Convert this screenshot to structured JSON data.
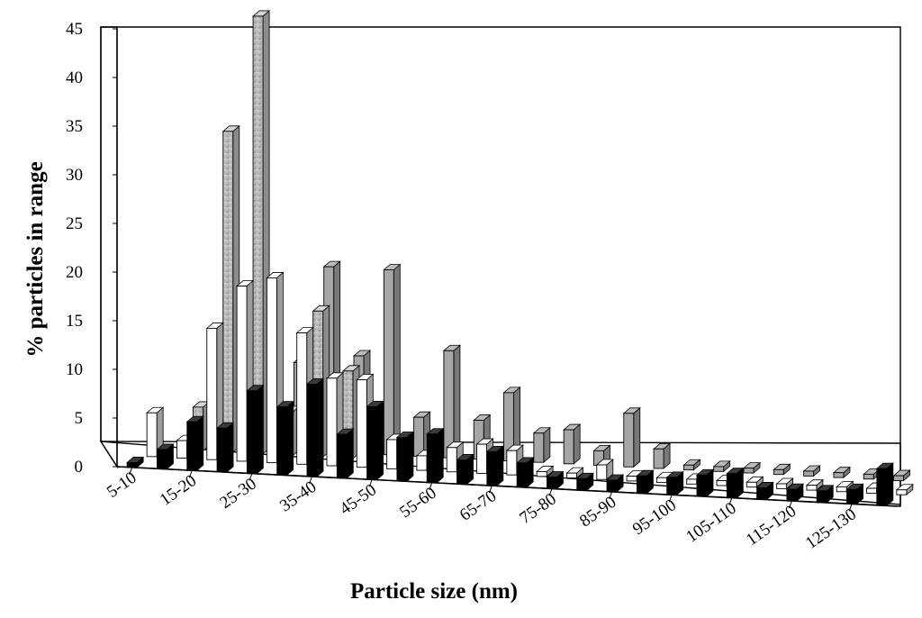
{
  "chart_data": {
    "type": "bar",
    "subtype": "3d-grouped-depth",
    "title": "",
    "xlabel": "Particle size (nm)",
    "ylabel": "% particles in range",
    "ylim": [
      0,
      45
    ],
    "yticks": [
      "0",
      "5",
      "10",
      "15",
      "20",
      "25",
      "30",
      "35",
      "40",
      "45"
    ],
    "categories": [
      "5-10",
      "10-15",
      "15-20",
      "20-25",
      "25-30",
      "30-35",
      "35-40",
      "40-45",
      "45-50",
      "50-55",
      "55-60",
      "60-65",
      "65-70",
      "70-75",
      "75-80",
      "80-85",
      "85-90",
      "90-95",
      "95-100",
      "100-105",
      "105-110",
      "110-115",
      "115-120",
      "120-125",
      "125-130",
      "130-135"
    ],
    "category_labels_shown": [
      "5-10",
      "15-20",
      "25-30",
      "35-40",
      "45-50",
      "55-60",
      "65-70",
      "75-80",
      "85-90",
      "95-100",
      "105-110",
      "115-120",
      "125-130"
    ],
    "grid": false,
    "legend": "none",
    "series": [
      {
        "color": "#a6a6a6",
        "pattern": "none",
        "values": [
          0,
          1.5,
          6,
          15,
          9,
          19,
          10,
          19,
          4,
          11,
          4,
          7,
          3,
          3.5,
          1.5,
          5.5,
          2,
          0.5,
          0.5,
          0.5,
          0.5,
          0.5,
          0.5,
          0.5,
          0.5,
          0.5
        ]
      },
      {
        "color": "#bfbfbf",
        "pattern": "speckled",
        "values": [
          0,
          4.5,
          33,
          45,
          4.5,
          15,
          9,
          0,
          0,
          0,
          0,
          0,
          0,
          0,
          0,
          0,
          0,
          0,
          0,
          0,
          0,
          0,
          0,
          0,
          0,
          0
        ]
      },
      {
        "color": "#ffffff",
        "pattern": "none",
        "values": [
          4.5,
          1.8,
          13.5,
          18,
          19,
          13.5,
          9,
          9,
          3,
          1.5,
          2.5,
          3,
          2.5,
          0.5,
          0.5,
          1.5,
          0.5,
          0.5,
          0.5,
          0.5,
          0.5,
          0.5,
          0.5,
          0.5,
          0.5,
          0.5
        ]
      },
      {
        "color": "#000000",
        "pattern": "none",
        "values": [
          0.5,
          2,
          5,
          4.5,
          8.5,
          7,
          9.5,
          4.5,
          7.5,
          4.5,
          5,
          2.5,
          3.5,
          2.5,
          1.2,
          1.2,
          1.2,
          1.8,
          1.8,
          2.2,
          2.5,
          1.2,
          1.2,
          1.2,
          1.5,
          3.8
        ]
      }
    ]
  }
}
